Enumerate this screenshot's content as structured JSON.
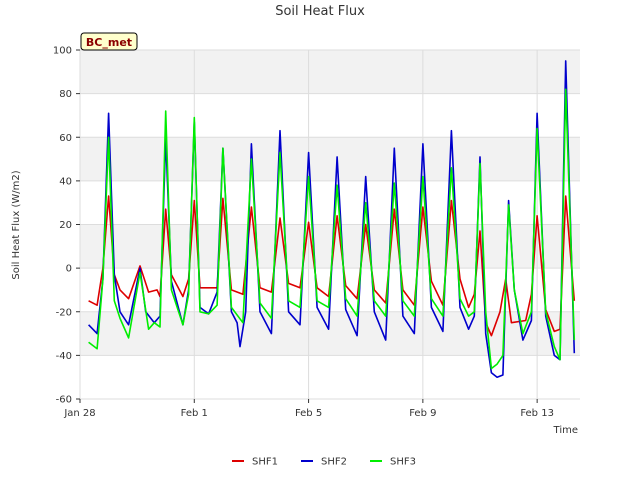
{
  "chart_data": {
    "type": "line",
    "title": "Soil Heat Flux",
    "xlabel": "Time",
    "ylabel": "Soil Heat Flux (W/m2)",
    "badge": "BC_met",
    "xlim": [
      0,
      17.5
    ],
    "ylim": [
      -60,
      100
    ],
    "yticks": [
      -60,
      -40,
      -20,
      0,
      20,
      40,
      60,
      80,
      100
    ],
    "xticks": [
      {
        "value": 0,
        "label": "Jan 28"
      },
      {
        "value": 4,
        "label": "Feb 1"
      },
      {
        "value": 8,
        "label": "Feb 5"
      },
      {
        "value": 12,
        "label": "Feb 9"
      },
      {
        "value": 16,
        "label": "Feb 13"
      }
    ],
    "bands": [
      [
        -40,
        -20
      ],
      [
        0,
        20
      ],
      [
        40,
        60
      ],
      [
        80,
        100
      ]
    ],
    "colors": {
      "grid": "#dddddd",
      "band": "#f2f2f2",
      "badge_fill": "#ffffcc",
      "badge_stroke": "#000000"
    },
    "series": [
      {
        "name": "SHF1",
        "color": "#dd0000",
        "points": [
          [
            0.3,
            -15
          ],
          [
            0.6,
            -17
          ],
          [
            0.8,
            0
          ],
          [
            1.0,
            33
          ],
          [
            1.2,
            -3
          ],
          [
            1.4,
            -10
          ],
          [
            1.7,
            -14
          ],
          [
            2.1,
            1
          ],
          [
            2.4,
            -11
          ],
          [
            2.7,
            -10
          ],
          [
            2.8,
            -13
          ],
          [
            3.0,
            27
          ],
          [
            3.2,
            -3
          ],
          [
            3.6,
            -13
          ],
          [
            3.8,
            -5
          ],
          [
            4.0,
            31
          ],
          [
            4.2,
            -9
          ],
          [
            4.5,
            -9
          ],
          [
            4.8,
            -9
          ],
          [
            5.0,
            32
          ],
          [
            5.3,
            -10
          ],
          [
            5.7,
            -12
          ],
          [
            6.0,
            28
          ],
          [
            6.3,
            -9
          ],
          [
            6.7,
            -11
          ],
          [
            7.0,
            23
          ],
          [
            7.3,
            -7
          ],
          [
            7.7,
            -9
          ],
          [
            8.0,
            21
          ],
          [
            8.3,
            -9
          ],
          [
            8.7,
            -13
          ],
          [
            9.0,
            24
          ],
          [
            9.3,
            -8
          ],
          [
            9.7,
            -14
          ],
          [
            10.0,
            20
          ],
          [
            10.3,
            -10
          ],
          [
            10.7,
            -16
          ],
          [
            11.0,
            27
          ],
          [
            11.3,
            -10
          ],
          [
            11.7,
            -17
          ],
          [
            12.0,
            28
          ],
          [
            12.3,
            -6
          ],
          [
            12.7,
            -17
          ],
          [
            13.0,
            31
          ],
          [
            13.3,
            -5
          ],
          [
            13.6,
            -18
          ],
          [
            13.8,
            -12
          ],
          [
            14.0,
            17
          ],
          [
            14.2,
            -25
          ],
          [
            14.4,
            -31
          ],
          [
            14.7,
            -20
          ],
          [
            14.9,
            -5
          ],
          [
            15.1,
            -25
          ],
          [
            15.6,
            -24
          ],
          [
            15.8,
            -12
          ],
          [
            16.0,
            24
          ],
          [
            16.3,
            -19
          ],
          [
            16.6,
            -29
          ],
          [
            16.8,
            -28
          ],
          [
            17.0,
            33
          ],
          [
            17.3,
            -15
          ]
        ]
      },
      {
        "name": "SHF2",
        "color": "#0000cc",
        "points": [
          [
            0.3,
            -26
          ],
          [
            0.6,
            -30
          ],
          [
            0.8,
            -5
          ],
          [
            1.0,
            71
          ],
          [
            1.2,
            -3
          ],
          [
            1.4,
            -20
          ],
          [
            1.7,
            -26
          ],
          [
            2.1,
            0
          ],
          [
            2.3,
            -20
          ],
          [
            2.6,
            -25
          ],
          [
            2.8,
            -22
          ],
          [
            3.0,
            60
          ],
          [
            3.2,
            -6
          ],
          [
            3.6,
            -26
          ],
          [
            3.8,
            -10
          ],
          [
            4.0,
            67
          ],
          [
            4.2,
            -18
          ],
          [
            4.5,
            -21
          ],
          [
            4.8,
            -11
          ],
          [
            5.0,
            55
          ],
          [
            5.3,
            -20
          ],
          [
            5.5,
            -25
          ],
          [
            5.6,
            -36
          ],
          [
            5.8,
            -20
          ],
          [
            6.0,
            57
          ],
          [
            6.3,
            -20
          ],
          [
            6.7,
            -30
          ],
          [
            7.0,
            63
          ],
          [
            7.3,
            -20
          ],
          [
            7.7,
            -26
          ],
          [
            8.0,
            53
          ],
          [
            8.3,
            -18
          ],
          [
            8.7,
            -28
          ],
          [
            9.0,
            51
          ],
          [
            9.3,
            -19
          ],
          [
            9.7,
            -31
          ],
          [
            10.0,
            42
          ],
          [
            10.3,
            -20
          ],
          [
            10.7,
            -33
          ],
          [
            11.0,
            55
          ],
          [
            11.3,
            -22
          ],
          [
            11.7,
            -30
          ],
          [
            12.0,
            57
          ],
          [
            12.3,
            -18
          ],
          [
            12.7,
            -29
          ],
          [
            13.0,
            63
          ],
          [
            13.3,
            -18
          ],
          [
            13.6,
            -28
          ],
          [
            13.8,
            -22
          ],
          [
            14.0,
            51
          ],
          [
            14.2,
            -30
          ],
          [
            14.4,
            -48
          ],
          [
            14.6,
            -50
          ],
          [
            14.8,
            -49
          ],
          [
            15.0,
            31
          ],
          [
            15.2,
            -10
          ],
          [
            15.5,
            -33
          ],
          [
            15.8,
            -24
          ],
          [
            16.0,
            71
          ],
          [
            16.3,
            -22
          ],
          [
            16.6,
            -40
          ],
          [
            16.8,
            -42
          ],
          [
            17.0,
            95
          ],
          [
            17.3,
            -39
          ]
        ]
      },
      {
        "name": "SHF3",
        "color": "#00ee00",
        "points": [
          [
            0.3,
            -34
          ],
          [
            0.6,
            -37
          ],
          [
            0.8,
            -5
          ],
          [
            1.0,
            60
          ],
          [
            1.2,
            -15
          ],
          [
            1.4,
            -23
          ],
          [
            1.7,
            -32
          ],
          [
            2.1,
            -2
          ],
          [
            2.4,
            -28
          ],
          [
            2.6,
            -25
          ],
          [
            2.8,
            -27
          ],
          [
            3.0,
            72
          ],
          [
            3.2,
            -10
          ],
          [
            3.6,
            -26
          ],
          [
            3.8,
            -12
          ],
          [
            4.0,
            69
          ],
          [
            4.2,
            -20
          ],
          [
            4.5,
            -21
          ],
          [
            4.8,
            -17
          ],
          [
            5.0,
            55
          ],
          [
            5.3,
            -18
          ],
          [
            5.7,
            -25
          ],
          [
            6.0,
            50
          ],
          [
            6.3,
            -16
          ],
          [
            6.7,
            -23
          ],
          [
            7.0,
            53
          ],
          [
            7.3,
            -15
          ],
          [
            7.7,
            -18
          ],
          [
            8.0,
            42
          ],
          [
            8.3,
            -15
          ],
          [
            8.7,
            -18
          ],
          [
            9.0,
            38
          ],
          [
            9.3,
            -14
          ],
          [
            9.7,
            -22
          ],
          [
            10.0,
            30
          ],
          [
            10.3,
            -15
          ],
          [
            10.7,
            -22
          ],
          [
            11.0,
            39
          ],
          [
            11.3,
            -15
          ],
          [
            11.7,
            -22
          ],
          [
            12.0,
            42
          ],
          [
            12.3,
            -14
          ],
          [
            12.7,
            -22
          ],
          [
            13.0,
            46
          ],
          [
            13.3,
            -14
          ],
          [
            13.6,
            -22
          ],
          [
            13.8,
            -20
          ],
          [
            14.0,
            48
          ],
          [
            14.2,
            -20
          ],
          [
            14.4,
            -46
          ],
          [
            14.6,
            -44
          ],
          [
            14.8,
            -40
          ],
          [
            15.0,
            29
          ],
          [
            15.2,
            -10
          ],
          [
            15.5,
            -30
          ],
          [
            15.8,
            -20
          ],
          [
            16.0,
            64
          ],
          [
            16.3,
            -20
          ],
          [
            16.6,
            -36
          ],
          [
            16.8,
            -42
          ],
          [
            17.0,
            82
          ],
          [
            17.3,
            -33
          ]
        ]
      }
    ]
  }
}
